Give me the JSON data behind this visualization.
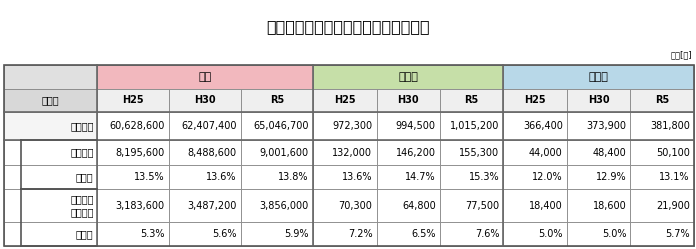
{
  "title": "全国・新潟県・新潟市の空き家の状況",
  "unit_label": "単位[戸]",
  "header_groups": [
    "全国",
    "新潟県",
    "新潟市"
  ],
  "header_group_colors": [
    "#f2b8be",
    "#c6dfa8",
    "#b8d8e8"
  ],
  "subheader_label": "調査年",
  "years": [
    "H25",
    "H30",
    "R5"
  ],
  "rows": [
    {
      "label": "住宅総数",
      "indent": 0,
      "values": [
        "60,628,600",
        "62,407,400",
        "65,046,700",
        "972,300",
        "994,500",
        "1,015,200",
        "366,400",
        "373,900",
        "381,800"
      ]
    },
    {
      "label": "空き家数",
      "indent": 1,
      "values": [
        "8,195,600",
        "8,488,600",
        "9,001,600",
        "132,000",
        "146,200",
        "155,300",
        "44,000",
        "48,400",
        "50,100"
      ]
    },
    {
      "label": "（率）",
      "indent": 1,
      "values": [
        "13.5%",
        "13.6%",
        "13.8%",
        "13.6%",
        "14.7%",
        "15.3%",
        "12.0%",
        "12.9%",
        "13.1%"
      ]
    },
    {
      "label": "その他の\n空き家数",
      "indent": 1,
      "values": [
        "3,183,600",
        "3,487,200",
        "3,856,000",
        "70,300",
        "64,800",
        "77,500",
        "18,400",
        "18,600",
        "21,900"
      ]
    },
    {
      "label": "（率）",
      "indent": 1,
      "values": [
        "5.3%",
        "5.6%",
        "5.9%",
        "7.2%",
        "6.5%",
        "7.6%",
        "5.0%",
        "5.0%",
        "5.7%"
      ]
    }
  ],
  "bg_color": "#ffffff",
  "border_color": "#888888",
  "title_fontsize": 11.5,
  "cell_fontsize": 7.0,
  "header_fontsize": 8.0,
  "unit_fontsize": 6.0
}
